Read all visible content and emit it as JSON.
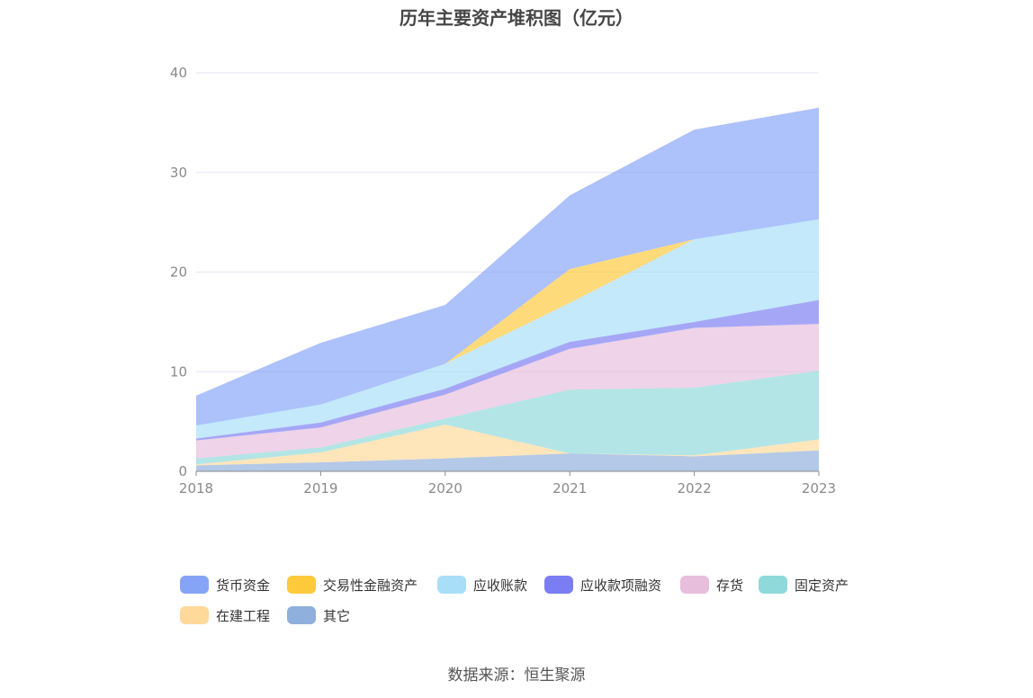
{
  "title": "历年主要资产堆积图（亿元）",
  "source": "数据来源：恒生聚源",
  "chart_data": {
    "type": "area",
    "stacked": true,
    "title": "历年主要资产堆积图（亿元）",
    "xlabel": "",
    "ylabel": "",
    "x": [
      "2018",
      "2019",
      "2020",
      "2021",
      "2022",
      "2023"
    ],
    "ylim": [
      0,
      40
    ],
    "yticks": [
      0,
      10,
      20,
      30,
      40
    ],
    "grid": true,
    "legend_position": "bottom",
    "series": [
      {
        "name": "其它",
        "color": "#8fafdc",
        "values": [
          0.6,
          0.9,
          1.3,
          1.8,
          1.5,
          2.1
        ]
      },
      {
        "name": "在建工程",
        "color": "#ffd99a",
        "values": [
          0.1,
          1.0,
          3.4,
          0.0,
          0.1,
          1.1
        ]
      },
      {
        "name": "固定资产",
        "color": "#8fd9da",
        "values": [
          0.6,
          0.5,
          0.6,
          6.4,
          6.8,
          6.9
        ]
      },
      {
        "name": "存货",
        "color": "#e8bedd",
        "values": [
          1.8,
          2.0,
          2.4,
          4.1,
          6.0,
          4.7
        ]
      },
      {
        "name": "应收款项融资",
        "color": "#7b7df2",
        "values": [
          0.2,
          0.5,
          0.6,
          0.7,
          0.6,
          2.4
        ]
      },
      {
        "name": "应收账款",
        "color": "#a8def7",
        "values": [
          1.3,
          1.8,
          2.5,
          3.9,
          8.3,
          8.1
        ]
      },
      {
        "name": "交易性金融资产",
        "color": "#ffc93c",
        "values": [
          0.0,
          0.0,
          0.0,
          3.4,
          0.0,
          0.0
        ]
      },
      {
        "name": "货币资金",
        "color": "#86a4f7",
        "values": [
          3.0,
          6.2,
          5.9,
          7.4,
          11.0,
          11.2
        ]
      }
    ]
  },
  "legend": [
    {
      "label": "货币资金",
      "color": "#86a4f7"
    },
    {
      "label": "交易性金融资产",
      "color": "#ffc93c"
    },
    {
      "label": "应收账款",
      "color": "#a8def7"
    },
    {
      "label": "应收款项融资",
      "color": "#7b7df2"
    },
    {
      "label": "存货",
      "color": "#e8bedd"
    },
    {
      "label": "固定资产",
      "color": "#8fd9da"
    },
    {
      "label": "在建工程",
      "color": "#ffd99a"
    },
    {
      "label": "其它",
      "color": "#8fafdc"
    }
  ]
}
